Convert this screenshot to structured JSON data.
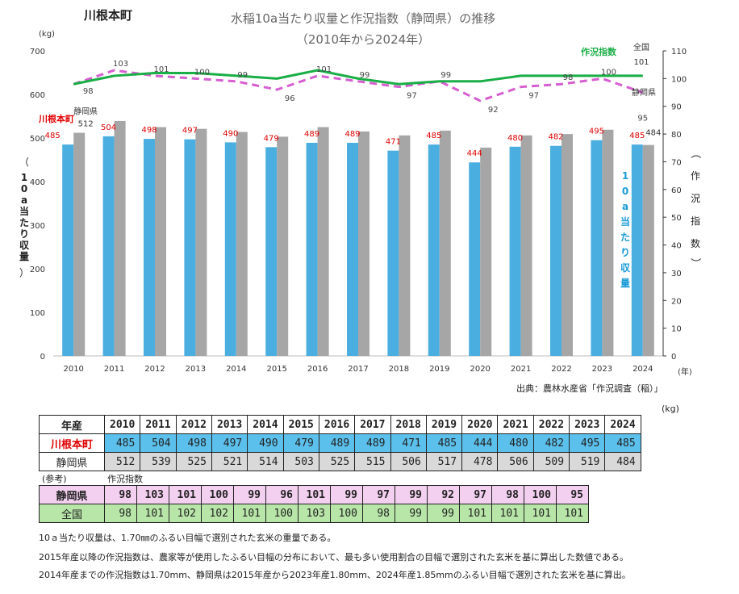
{
  "town_label": "川根本町",
  "title_line1": "水稲10a当たり収量と作況指数（静岡県）の推移",
  "title_line2": "（2010年から2024年）",
  "chart_data": {
    "type": "bar+line",
    "years": [
      "2010",
      "2011",
      "2012",
      "2013",
      "2014",
      "2015",
      "2016",
      "2017",
      "2018",
      "2019",
      "2020",
      "2021",
      "2022",
      "2023",
      "2024"
    ],
    "series": [
      {
        "name": "川根本町",
        "kind": "bar",
        "axis": "left",
        "color": "#4baee0",
        "values": [
          485,
          504,
          498,
          497,
          490,
          479,
          489,
          489,
          471,
          485,
          444,
          480,
          482,
          495,
          485
        ]
      },
      {
        "name": "静岡県",
        "kind": "bar",
        "axis": "left",
        "color": "#a6a6a6",
        "values": [
          512,
          539,
          525,
          521,
          514,
          503,
          525,
          515,
          506,
          517,
          478,
          506,
          509,
          519,
          484
        ]
      },
      {
        "name": "静岡県",
        "kind": "line",
        "axis": "right",
        "color": "#d65ed0",
        "dashed": true,
        "values": [
          98,
          103,
          101,
          100,
          99,
          96,
          101,
          99,
          97,
          99,
          92,
          97,
          98,
          100,
          95
        ]
      },
      {
        "name": "作況指数",
        "kind": "line",
        "axis": "right",
        "color": "#1aae46",
        "values": [
          98,
          101,
          102,
          102,
          101,
          100,
          103,
          100,
          98,
          99,
          99,
          101,
          101,
          101,
          101
        ]
      }
    ],
    "left_unit": "(kg)",
    "left_axis_label": "10a当たり収量",
    "left_ylim": [
      0,
      700
    ],
    "left_ticks": [
      "0",
      "100",
      "200",
      "300",
      "400",
      "500",
      "600",
      "700"
    ],
    "right_axis_label": "作況指数",
    "right_ylim": [
      0,
      110
    ],
    "right_ticks": [
      "0",
      "10",
      "20",
      "30",
      "40",
      "50",
      "60",
      "70",
      "80",
      "90",
      "100",
      "110"
    ],
    "x_unit": "(年)",
    "inner_bar_label": "10a当たり収量",
    "legend_green": "作況指数",
    "legend_national": "全国",
    "legend_shizuoka": "静岡県",
    "legend_kawane": "川根本町",
    "shizuoka_bar_first_label": "静岡県",
    "kawane_label_color": "#e00000"
  },
  "source": "出典：農林水産省「作況調査（稲）」",
  "unit_kg": "(kg)",
  "table_yield": {
    "header": "年産",
    "years": [
      "2010",
      "2011",
      "2012",
      "2013",
      "2014",
      "2015",
      "2016",
      "2017",
      "2018",
      "2019",
      "2020",
      "2021",
      "2022",
      "2023",
      "2024"
    ],
    "kawane_label": "川根本町",
    "kawane": [
      "485",
      "504",
      "498",
      "497",
      "490",
      "479",
      "489",
      "489",
      "471",
      "485",
      "444",
      "480",
      "482",
      "495",
      "485"
    ],
    "shizuoka_label": "静岡県",
    "shizuoka": [
      "512",
      "539",
      "525",
      "521",
      "514",
      "503",
      "525",
      "515",
      "506",
      "517",
      "478",
      "506",
      "509",
      "519",
      "484"
    ]
  },
  "ref_label": "(参考)",
  "ref_index_label": "作況指数",
  "table_index": {
    "shizuoka_label": "静岡県",
    "shizuoka": [
      "98",
      "103",
      "101",
      "100",
      "99",
      "96",
      "101",
      "99",
      "97",
      "99",
      "92",
      "97",
      "98",
      "100",
      "95"
    ],
    "national_label": "全国",
    "national": [
      "98",
      "101",
      "102",
      "102",
      "101",
      "100",
      "103",
      "100",
      "98",
      "99",
      "99",
      "101",
      "101",
      "101",
      "101"
    ]
  },
  "notes": [
    "10ａ当たり収量は、1.70㎜のふるい目幅で選別された玄米の重量である。",
    "2015年産以降の作況指数は、農家等が使用したふるい目幅の分布において、最も多い使用割合の目幅で選別された玄米を基に算出した数値である。",
    "2014年産までの作況指数は1.70mm、静岡県は2015年産から2023年産1.80mm、2024年産1.85mmのふるい目幅で選別された玄米を基に算出。"
  ]
}
